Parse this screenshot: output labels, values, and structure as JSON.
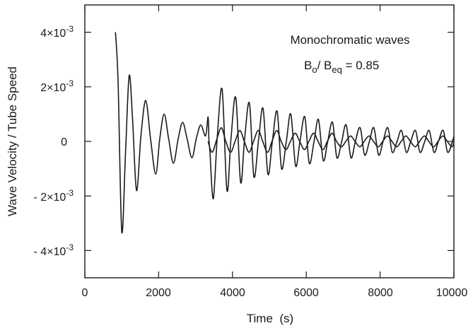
{
  "chart_data": {
    "type": "line",
    "title": "",
    "xlabel": "Time  (s)",
    "ylabel": "Wave Velocity / Tube Speed",
    "xlim": [
      0,
      10000
    ],
    "ylim": [
      -0.005,
      0.005
    ],
    "x_ticks": [
      {
        "value": 0,
        "label": "0"
      },
      {
        "value": 2000,
        "label": "2000"
      },
      {
        "value": 4000,
        "label": "4000"
      },
      {
        "value": 6000,
        "label": "6000"
      },
      {
        "value": 8000,
        "label": "8000"
      },
      {
        "value": 10000,
        "label": "10000"
      }
    ],
    "y_ticks": [
      {
        "value": 0.004,
        "mant": "4×10",
        "exp": "-3"
      },
      {
        "value": 0.002,
        "mant": "2×10",
        "exp": "-3"
      },
      {
        "value": 0,
        "mant": "0",
        "exp": ""
      },
      {
        "value": -0.002,
        "mant": "- 2×10",
        "exp": "-3"
      },
      {
        "value": -0.004,
        "mant": "- 4×10",
        "exp": "-3"
      }
    ],
    "annotations": {
      "line1": "Monochromatic waves",
      "b_base": "B",
      "b_sub": "o",
      "slash": "/ B",
      "eq_sub": "eq",
      "value_text": " = 0.85"
    },
    "series": [
      {
        "x": [
          830,
          900,
          1000,
          1100,
          1200,
          1290,
          1400,
          1520,
          1650,
          1780,
          1920,
          2030,
          2150,
          2270,
          2400,
          2530,
          2650,
          2770,
          2900,
          3020,
          3140,
          3270,
          3340,
          3360,
          3390,
          3480,
          3590,
          3720,
          3850,
          3960,
          4090,
          4220,
          4330,
          4460,
          4580,
          4710,
          4830,
          4960,
          5080,
          5210,
          5330,
          5460,
          5580,
          5710,
          5830,
          5960,
          6080,
          6210,
          6330,
          6460,
          6580,
          6710,
          6830,
          6960,
          7080,
          7210,
          7330,
          7460,
          7580,
          7710,
          7830,
          7960,
          8080,
          8210,
          8330,
          8460,
          8580,
          8710,
          8830,
          8960,
          9080,
          9210,
          9330,
          9460,
          9580,
          9710,
          9830,
          9960,
          10000
        ],
        "y": [
          0.004,
          0.0022,
          -0.0033,
          -0.0005,
          0.0024,
          0.0009,
          -0.0018,
          0.0002,
          0.0015,
          0.0001,
          -0.0012,
          0.0001,
          0.001,
          0.0001,
          -0.0008,
          0.0001,
          0.0007,
          0.0001,
          -0.0006,
          0.0001,
          0.0006,
          0.0002,
          0.0009,
          0.0001,
          -0.0004,
          -0.0021,
          0.0002,
          0.0019,
          -0.0018,
          0.0001,
          0.0016,
          -0.0015,
          0.0001,
          0.0014,
          -0.0013,
          0.0001,
          0.0012,
          -0.0012,
          0.0,
          0.0011,
          -0.001,
          0.0,
          0.001,
          -0.0009,
          0.0,
          0.0009,
          -0.0008,
          0.0,
          0.0008,
          -0.0007,
          0.0,
          0.0007,
          -0.0006,
          0.0,
          0.0006,
          -0.0006,
          0.0,
          0.0005,
          -0.0005,
          0.0,
          0.0005,
          -0.0005,
          0.0,
          0.0005,
          -0.0004,
          0.0,
          0.0004,
          -0.0004,
          0.0,
          0.0004,
          -0.0004,
          0.0,
          0.0004,
          -0.0004,
          0.0,
          0.0004,
          -0.0004,
          0.0,
          0.0002
        ]
      },
      {
        "x": [
          3340,
          3450,
          3580,
          3700,
          3820,
          3950,
          4070,
          4200,
          4320,
          4450,
          4570,
          4700,
          4820,
          4950,
          5070,
          5200,
          5320,
          5450,
          5570,
          5700,
          5820,
          5950,
          6070,
          6200,
          6320,
          6450,
          6570,
          6700,
          6820,
          6950,
          7070,
          7200,
          7320,
          7450,
          7570,
          7700,
          7820,
          7950,
          8070,
          8200,
          8320,
          8450,
          8570,
          8700,
          8820,
          8950,
          9070,
          9200,
          9320,
          9450,
          9570,
          9700,
          9820,
          9950,
          10000
        ],
        "y": [
          0.0,
          -0.0004,
          0.0001,
          0.0005,
          0.0,
          -0.0004,
          0.0,
          0.0004,
          0.0,
          -0.0004,
          0.0,
          0.0004,
          0.0,
          -0.0004,
          0.0,
          0.0004,
          0.0,
          -0.0003,
          0.0,
          0.0003,
          0.0,
          -0.0003,
          0.0,
          0.0003,
          0.0,
          -0.0003,
          0.0,
          0.0003,
          0.0,
          -0.0002,
          0.0,
          0.0002,
          0.0,
          -0.0002,
          0.0,
          0.0002,
          0.0,
          -0.0002,
          0.0,
          0.0002,
          0.0,
          -0.0002,
          0.0,
          0.0002,
          0.0,
          -0.0002,
          0.0,
          0.0002,
          0.0,
          -0.0002,
          0.0,
          0.0002,
          0.0,
          -0.0002,
          0.0
        ]
      }
    ]
  }
}
